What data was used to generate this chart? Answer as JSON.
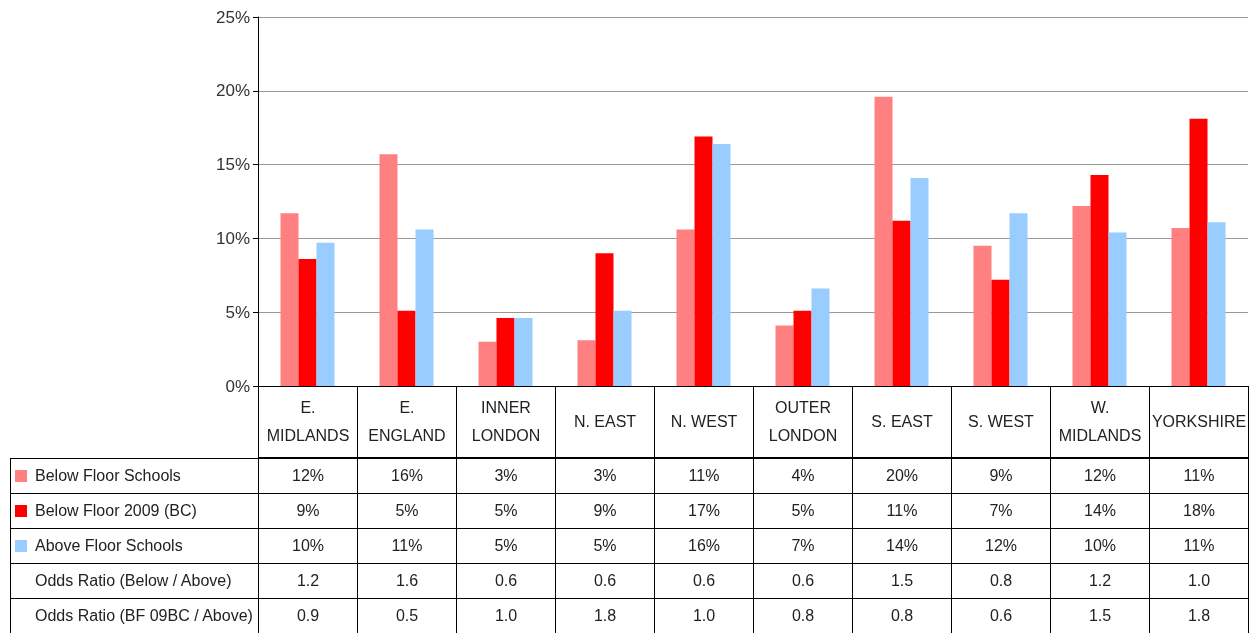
{
  "chart_data": {
    "type": "bar",
    "categories": [
      "E. MIDLANDS",
      "E. ENGLAND",
      "INNER LONDON",
      "N. EAST",
      "N. WEST",
      "OUTER LONDON",
      "S. EAST",
      "S. WEST",
      "W. MIDLANDS",
      "YORKSHIRE"
    ],
    "series": [
      {
        "name": "Below Floor Schools",
        "color": "#ff8080",
        "values": [
          11.7,
          15.7,
          3.0,
          3.1,
          10.6,
          4.1,
          19.6,
          9.5,
          12.2,
          10.7
        ],
        "value_labels": [
          "12%",
          "16%",
          "3%",
          "3%",
          "11%",
          "4%",
          "20%",
          "9%",
          "12%",
          "11%"
        ]
      },
      {
        "name": "Below Floor 2009 (BC)",
        "color": "#ff0000",
        "values": [
          8.6,
          5.1,
          4.6,
          9.0,
          16.9,
          5.1,
          11.2,
          7.2,
          14.3,
          18.1
        ],
        "value_labels": [
          "9%",
          "5%",
          "5%",
          "9%",
          "17%",
          "5%",
          "11%",
          "7%",
          "14%",
          "18%"
        ]
      },
      {
        "name": "Above Floor Schools",
        "color": "#99ccff",
        "values": [
          9.7,
          10.6,
          4.6,
          5.1,
          16.4,
          6.6,
          14.1,
          11.7,
          10.4,
          11.1
        ],
        "value_labels": [
          "10%",
          "11%",
          "5%",
          "5%",
          "16%",
          "7%",
          "14%",
          "12%",
          "10%",
          "11%"
        ]
      }
    ],
    "ylim": [
      0,
      25
    ],
    "yticks": [
      {
        "value": 0,
        "label": "0%"
      },
      {
        "value": 5,
        "label": "5%"
      },
      {
        "value": 10,
        "label": "10%"
      },
      {
        "value": 15,
        "label": "15%"
      },
      {
        "value": 20,
        "label": "20%"
      },
      {
        "value": 25,
        "label": "25%"
      }
    ],
    "grid": "y",
    "legend": "bottom",
    "annotations": [
      "Odds Ratio (Below / Above)",
      "1.2",
      "1.6",
      "0.6",
      "0.6",
      "0.6",
      "0.6",
      "1.5",
      "0.8",
      "1.2",
      "1.0",
      "Odds Ratio (BF 09BC / Above)",
      "0.9",
      "0.5",
      "1.0",
      "1.8",
      "1.0",
      "0.8",
      "0.8",
      "0.6",
      "1.5",
      "1.8"
    ]
  }
}
